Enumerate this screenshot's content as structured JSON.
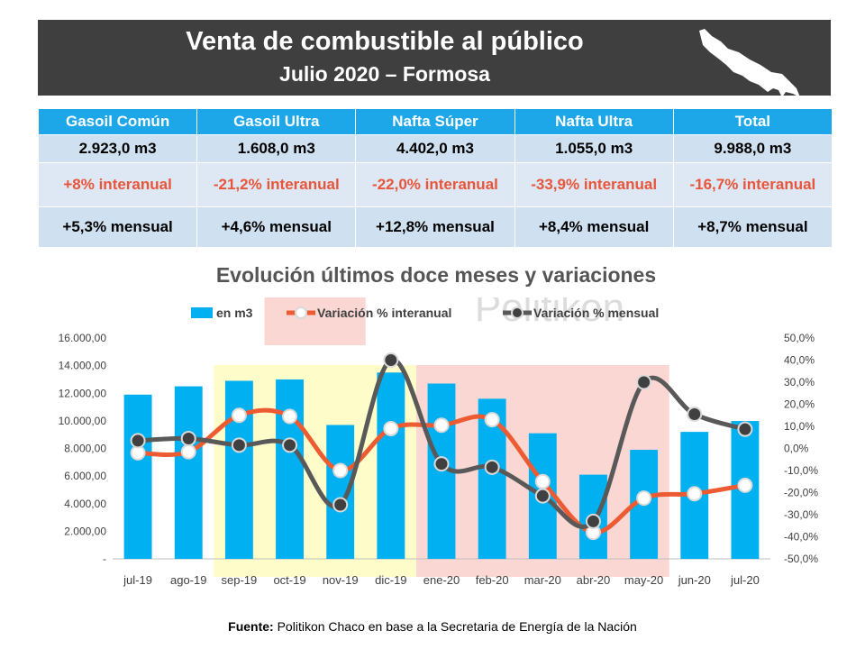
{
  "header": {
    "title": "Venta de combustible al público",
    "subtitle": "Julio 2020 – Formosa",
    "map_icon": "formosa-province-map-icon"
  },
  "summary_table": {
    "headers": [
      "Gasoil Común",
      "Gasoil Ultra",
      "Nafta Súper",
      "Nafta Ultra",
      "Total"
    ],
    "volumes": [
      "2.923,0 m3",
      "1.608,0 m3",
      "4.402,0 m3",
      "1.055,0 m3",
      "9.988,0 m3"
    ],
    "interanual": [
      "+8% interanual",
      "-21,2% interanual",
      "-22,0% interanual",
      "-33,9% interanual",
      "-16,7% interanual"
    ],
    "mensual": [
      "+5,3% mensual",
      "+4,6% mensual",
      "+12,8% mensual",
      "+8,4% mensual",
      "+8,7% mensual"
    ]
  },
  "colors": {
    "header_bg": "#3f3f3f",
    "table_header": "#1ea7e8",
    "table_row": "#cfe0f1",
    "interanual_text": "#e8553a",
    "bars": "#00b0f0",
    "interanual_line": "#ed5b33",
    "mensual_line": "#595959",
    "mensual_marker": "#404040",
    "highlight_red": "#f9c9c4",
    "highlight_yellow": "#fdfcb8"
  },
  "watermark": "Politikon",
  "chart_data": {
    "type": "bar",
    "title": "Evolución últimos doce meses y variaciones",
    "categories": [
      "jul-19",
      "ago-19",
      "sep-19",
      "oct-19",
      "nov-19",
      "dic-19",
      "ene-20",
      "feb-20",
      "mar-20",
      "abr-20",
      "may-20",
      "jun-20",
      "jul-20"
    ],
    "series": [
      {
        "name": "en m3",
        "type": "bar",
        "axis": "left",
        "values": [
          11900,
          12500,
          12900,
          13000,
          9700,
          13500,
          12700,
          11600,
          9100,
          6100,
          7900,
          9200,
          9988
        ]
      },
      {
        "name": "Variación % interanual",
        "type": "line",
        "axis": "right",
        "values": [
          -2.0,
          -1.5,
          15.0,
          14.5,
          -10.0,
          9.0,
          10.5,
          13.0,
          -15.0,
          -38.0,
          -22.5,
          -20.5,
          -16.7
        ]
      },
      {
        "name": "Variación % mensual",
        "type": "line",
        "axis": "right",
        "values": [
          3.5,
          4.5,
          1.5,
          1.5,
          -25.5,
          40.0,
          -7.0,
          -8.5,
          -21.5,
          -33.0,
          30.0,
          15.5,
          8.7
        ]
      }
    ],
    "y_left": {
      "min": 0,
      "max": 16000,
      "ticks": [
        "-",
        "2.000,00",
        "4.000,00",
        "6.000,00",
        "8.000,00",
        "10.000,00",
        "12.000,00",
        "14.000,00",
        "16.000,00"
      ]
    },
    "y_right": {
      "min": -50,
      "max": 50,
      "ticks": [
        "-50,0%",
        "-40,0%",
        "-30,0%",
        "-20,0%",
        "-10,0%",
        "0,0%",
        "10,0%",
        "20,0%",
        "30,0%",
        "40,0%",
        "50,0%"
      ]
    },
    "legend_position": "top",
    "highlights": [
      {
        "color": "red",
        "from": "oct-19",
        "to": "nov-19",
        "area": "upper"
      },
      {
        "color": "yellow",
        "from": "sep-19",
        "to": "dic-19",
        "area": "plot"
      },
      {
        "color": "red",
        "from": "ene-20",
        "to": "may-20",
        "area": "plot"
      }
    ]
  },
  "footer": {
    "source_label": "Fuente:",
    "source_text": " Politikon Chaco en base a la Secretaria de Energía de la Nación"
  }
}
